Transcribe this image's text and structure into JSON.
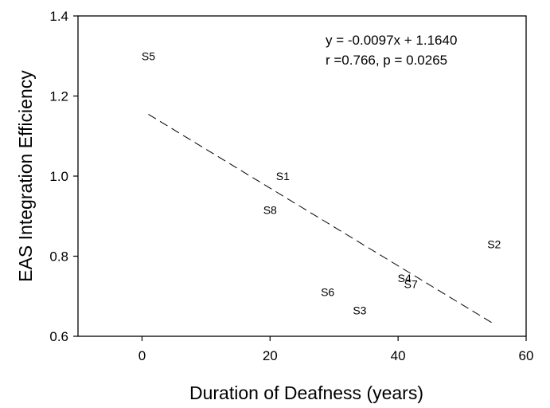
{
  "chart_data": {
    "type": "scatter",
    "xlabel": "Duration of Deafness (years)",
    "ylabel": "EAS Integration Efficiency",
    "xlim": [
      -10,
      60
    ],
    "ylim": [
      0.6,
      1.4
    ],
    "x_ticks": [
      0,
      20,
      40,
      60
    ],
    "x_tick_labels": [
      "0",
      "20",
      "40",
      "60"
    ],
    "y_ticks": [
      0.6,
      0.8,
      1.0,
      1.2,
      1.4
    ],
    "y_tick_labels": [
      "0.6",
      "0.8",
      "1.0",
      "1.2",
      "1.4"
    ],
    "grid": false,
    "points": [
      {
        "label": "S1",
        "x": 22,
        "y": 1.0
      },
      {
        "label": "S2",
        "x": 55,
        "y": 0.83
      },
      {
        "label": "S3",
        "x": 34,
        "y": 0.665
      },
      {
        "label": "S4",
        "x": 41,
        "y": 0.745
      },
      {
        "label": "S5",
        "x": 1,
        "y": 1.3
      },
      {
        "label": "S6",
        "x": 29,
        "y": 0.71
      },
      {
        "label": "S7",
        "x": 42,
        "y": 0.73
      },
      {
        "label": "S8",
        "x": 20,
        "y": 0.915
      }
    ],
    "fit": {
      "slope": -0.0097,
      "intercept": 1.164,
      "x_range": [
        1,
        55
      ],
      "style": "dashed"
    },
    "annotations": [
      "y = -0.0097x + 1.1640",
      "r =0.766, p = 0.0265"
    ]
  }
}
